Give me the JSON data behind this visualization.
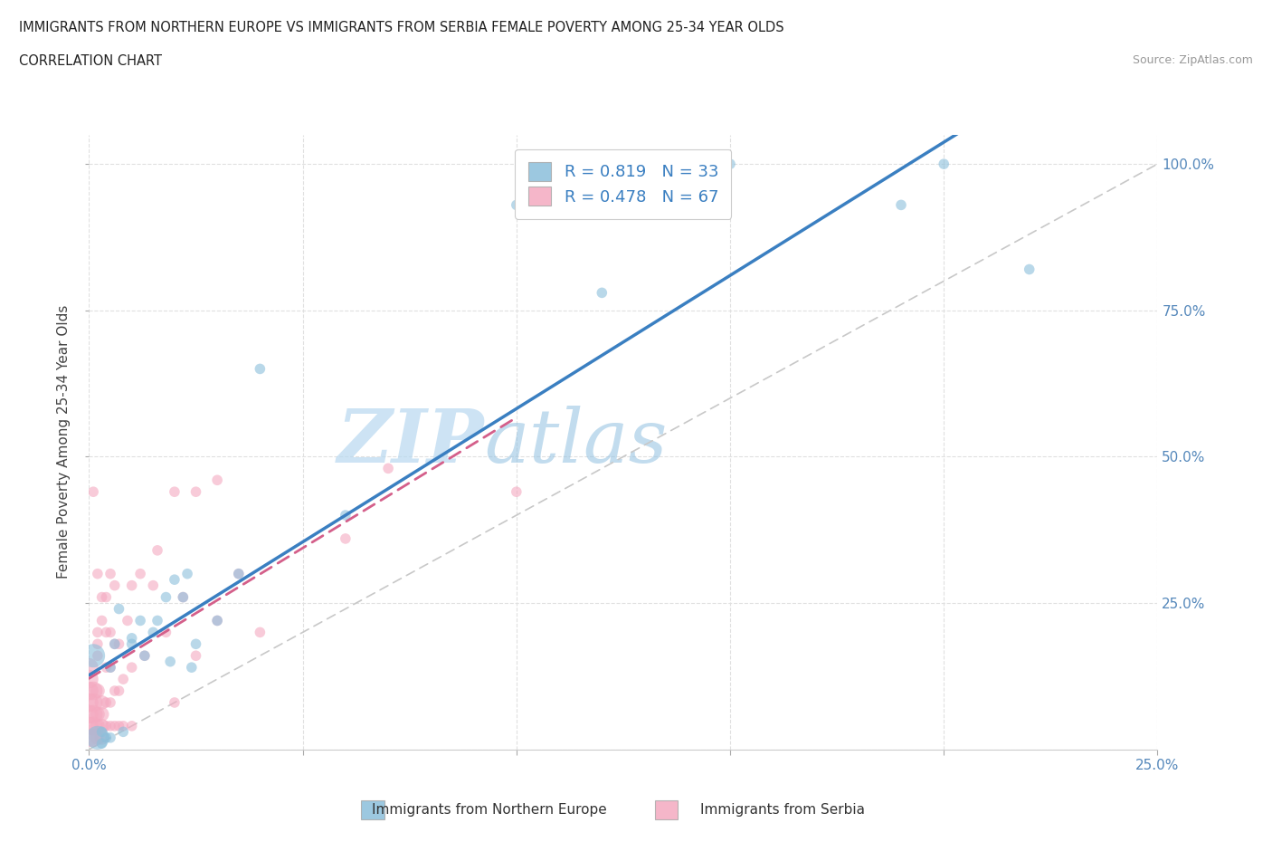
{
  "title_line1": "IMMIGRANTS FROM NORTHERN EUROPE VS IMMIGRANTS FROM SERBIA FEMALE POVERTY AMONG 25-34 YEAR OLDS",
  "title_line2": "CORRELATION CHART",
  "source": "Source: ZipAtlas.com",
  "ylabel": "Female Poverty Among 25-34 Year Olds",
  "xlim": [
    0.0,
    0.25
  ],
  "ylim": [
    0.0,
    1.05
  ],
  "watermark_zip": "ZIP",
  "watermark_atlas": "atlas",
  "legend_label1": "R = 0.819   N = 33",
  "legend_label2": "R = 0.478   N = 67",
  "blue_color": "#8bbfdb",
  "pink_color": "#f4a9c0",
  "blue_line_color": "#3a7fc1",
  "pink_line_color": "#d45f8a",
  "ref_line_color": "#cccccc",
  "grid_color": "#e0e0e0",
  "background_color": "#ffffff",
  "tick_color": "#5588bb",
  "blue_scatter": [
    [
      0.001,
      0.16
    ],
    [
      0.002,
      0.02
    ],
    [
      0.003,
      0.01
    ],
    [
      0.003,
      0.03
    ],
    [
      0.004,
      0.02
    ],
    [
      0.005,
      0.14
    ],
    [
      0.005,
      0.02
    ],
    [
      0.006,
      0.18
    ],
    [
      0.007,
      0.24
    ],
    [
      0.008,
      0.03
    ],
    [
      0.01,
      0.18
    ],
    [
      0.01,
      0.19
    ],
    [
      0.012,
      0.22
    ],
    [
      0.013,
      0.16
    ],
    [
      0.015,
      0.2
    ],
    [
      0.016,
      0.22
    ],
    [
      0.018,
      0.26
    ],
    [
      0.019,
      0.15
    ],
    [
      0.02,
      0.29
    ],
    [
      0.022,
      0.26
    ],
    [
      0.023,
      0.3
    ],
    [
      0.024,
      0.14
    ],
    [
      0.025,
      0.18
    ],
    [
      0.03,
      0.22
    ],
    [
      0.035,
      0.3
    ],
    [
      0.04,
      0.65
    ],
    [
      0.06,
      0.4
    ],
    [
      0.1,
      0.93
    ],
    [
      0.12,
      0.78
    ],
    [
      0.15,
      1.0
    ],
    [
      0.19,
      0.93
    ],
    [
      0.2,
      1.0
    ],
    [
      0.22,
      0.82
    ]
  ],
  "pink_scatter": [
    [
      0.0,
      0.02
    ],
    [
      0.0,
      0.04
    ],
    [
      0.0,
      0.06
    ],
    [
      0.0,
      0.08
    ],
    [
      0.0,
      0.1
    ],
    [
      0.0,
      0.12
    ],
    [
      0.0,
      0.14
    ],
    [
      0.001,
      0.02
    ],
    [
      0.001,
      0.04
    ],
    [
      0.001,
      0.06
    ],
    [
      0.001,
      0.08
    ],
    [
      0.001,
      0.1
    ],
    [
      0.001,
      0.44
    ],
    [
      0.002,
      0.02
    ],
    [
      0.002,
      0.04
    ],
    [
      0.002,
      0.06
    ],
    [
      0.002,
      0.1
    ],
    [
      0.002,
      0.16
    ],
    [
      0.002,
      0.18
    ],
    [
      0.002,
      0.2
    ],
    [
      0.002,
      0.3
    ],
    [
      0.003,
      0.02
    ],
    [
      0.003,
      0.04
    ],
    [
      0.003,
      0.06
    ],
    [
      0.003,
      0.08
    ],
    [
      0.003,
      0.22
    ],
    [
      0.003,
      0.26
    ],
    [
      0.004,
      0.04
    ],
    [
      0.004,
      0.08
    ],
    [
      0.004,
      0.14
    ],
    [
      0.004,
      0.2
    ],
    [
      0.004,
      0.26
    ],
    [
      0.005,
      0.04
    ],
    [
      0.005,
      0.08
    ],
    [
      0.005,
      0.14
    ],
    [
      0.005,
      0.2
    ],
    [
      0.005,
      0.3
    ],
    [
      0.006,
      0.04
    ],
    [
      0.006,
      0.1
    ],
    [
      0.006,
      0.18
    ],
    [
      0.006,
      0.28
    ],
    [
      0.007,
      0.04
    ],
    [
      0.007,
      0.1
    ],
    [
      0.007,
      0.18
    ],
    [
      0.008,
      0.04
    ],
    [
      0.008,
      0.12
    ],
    [
      0.009,
      0.22
    ],
    [
      0.01,
      0.04
    ],
    [
      0.01,
      0.14
    ],
    [
      0.01,
      0.28
    ],
    [
      0.012,
      0.3
    ],
    [
      0.013,
      0.16
    ],
    [
      0.015,
      0.28
    ],
    [
      0.016,
      0.34
    ],
    [
      0.018,
      0.2
    ],
    [
      0.02,
      0.08
    ],
    [
      0.02,
      0.44
    ],
    [
      0.022,
      0.26
    ],
    [
      0.025,
      0.16
    ],
    [
      0.025,
      0.44
    ],
    [
      0.03,
      0.22
    ],
    [
      0.03,
      0.46
    ],
    [
      0.035,
      0.3
    ],
    [
      0.04,
      0.2
    ],
    [
      0.06,
      0.36
    ],
    [
      0.07,
      0.48
    ],
    [
      0.1,
      0.44
    ]
  ],
  "legend_bottom_blue": "Immigrants from Northern Europe",
  "legend_bottom_pink": "Immigrants from Serbia"
}
